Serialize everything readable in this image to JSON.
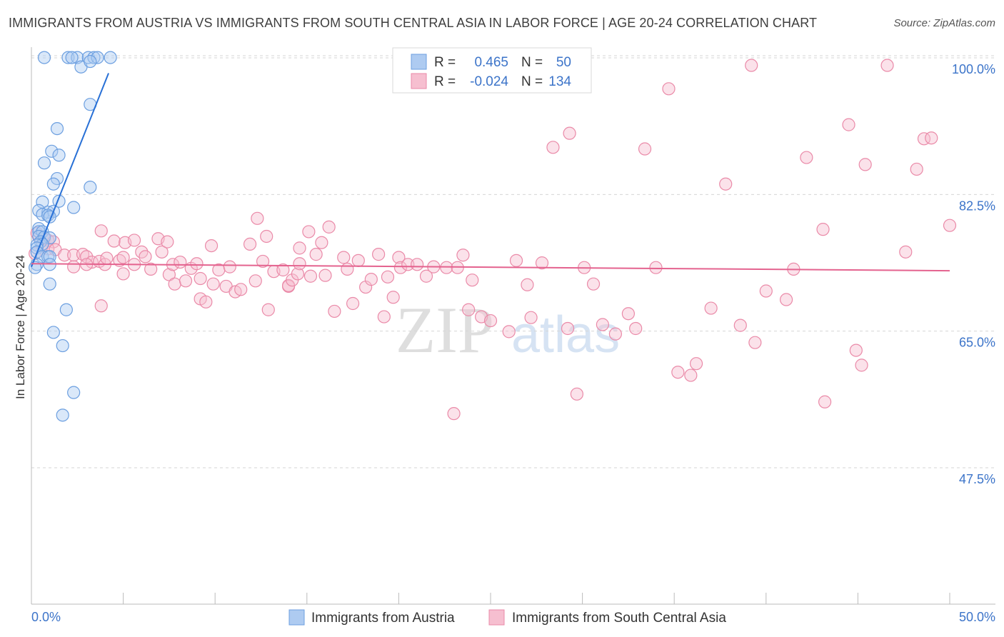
{
  "header": {
    "title": "IMMIGRANTS FROM AUSTRIA VS IMMIGRANTS FROM SOUTH CENTRAL ASIA IN LABOR FORCE | AGE 20-24 CORRELATION CHART",
    "source": "Source: ZipAtlas.com"
  },
  "watermark": {
    "part1": "ZIP",
    "part2": "atlas"
  },
  "stats_legend": {
    "rows": [
      {
        "r_label": "R =",
        "r_value": "0.465",
        "n_label": "N =",
        "n_value": "50"
      },
      {
        "r_label": "R =",
        "r_value": "-0.024",
        "n_label": "N =",
        "n_value": "134"
      }
    ]
  },
  "bottom_legend": {
    "items": [
      {
        "label": "Immigrants from Austria"
      },
      {
        "label": "Immigrants from South Central Asia"
      }
    ]
  },
  "colors": {
    "blue": "#6c9fe0",
    "blue_fill": "#aecbf1",
    "blue_line": "#2870d6",
    "pink": "#ea8aa8",
    "pink_fill": "#f6bfd0",
    "pink_line": "#e4638f",
    "value_text": "#3c74c9",
    "grid": "#d6d6d6"
  },
  "chart_data": {
    "type": "scatter",
    "title": "IMMIGRANTS FROM AUSTRIA VS IMMIGRANTS FROM SOUTH CENTRAL ASIA IN LABOR FORCE | AGE 20-24 CORRELATION CHART",
    "xlabel": "",
    "ylabel": "In Labor Force | Age 20-24",
    "xlim": [
      0,
      50
    ],
    "ylim": [
      30,
      101.5
    ],
    "x_tick_labels": [
      "0.0%",
      "50.0%"
    ],
    "y_ticks": [
      47.5,
      65.0,
      82.5,
      100.0
    ],
    "y_tick_labels": [
      "47.5%",
      "65.0%",
      "82.5%",
      "100.0%"
    ],
    "grid": true,
    "legend_position": "top-center",
    "series": [
      {
        "name": "Immigrants from Austria",
        "color": "blue",
        "r": 0.465,
        "n": 50,
        "trend": {
          "x": [
            0.0,
            4.2
          ],
          "y": [
            74.7,
            99.5
          ]
        },
        "points": [
          [
            0.7,
            101.5
          ],
          [
            2.0,
            101.5
          ],
          [
            2.5,
            101.5
          ],
          [
            3.1,
            101.5
          ],
          [
            3.4,
            101.5
          ],
          [
            4.3,
            101.5
          ],
          [
            2.2,
            101.5
          ],
          [
            3.6,
            101.5
          ],
          [
            2.7,
            100.3
          ],
          [
            3.2,
            101.0
          ],
          [
            3.2,
            95.5
          ],
          [
            1.4,
            92.4
          ],
          [
            1.1,
            89.5
          ],
          [
            1.5,
            89.0
          ],
          [
            0.7,
            88.0
          ],
          [
            1.4,
            86.0
          ],
          [
            1.2,
            85.3
          ],
          [
            3.2,
            84.9
          ],
          [
            1.5,
            83.1
          ],
          [
            0.6,
            83.0
          ],
          [
            2.3,
            82.3
          ],
          [
            0.4,
            81.9
          ],
          [
            0.9,
            81.7
          ],
          [
            1.2,
            81.8
          ],
          [
            0.6,
            81.4
          ],
          [
            0.9,
            81.3
          ],
          [
            1.0,
            81.1
          ],
          [
            0.4,
            79.6
          ],
          [
            0.4,
            79.2
          ],
          [
            0.6,
            79.2
          ],
          [
            0.4,
            78.6
          ],
          [
            0.7,
            78.5
          ],
          [
            1.0,
            78.4
          ],
          [
            0.5,
            77.9
          ],
          [
            0.6,
            77.6
          ],
          [
            0.3,
            77.5
          ],
          [
            0.3,
            77.1
          ],
          [
            0.3,
            76.6
          ],
          [
            0.6,
            76.0
          ],
          [
            0.9,
            76.0
          ],
          [
            1.0,
            76.0
          ],
          [
            0.3,
            75.0
          ],
          [
            1.0,
            75.0
          ],
          [
            0.2,
            74.6
          ],
          [
            1.0,
            72.5
          ],
          [
            1.9,
            69.2
          ],
          [
            1.2,
            66.3
          ],
          [
            1.7,
            64.6
          ],
          [
            2.3,
            58.6
          ],
          [
            1.7,
            55.7
          ]
        ]
      },
      {
        "name": "Immigrants from South Central Asia",
        "color": "pink",
        "r": -0.024,
        "n": 134,
        "trend": {
          "x": [
            0.0,
            50.0
          ],
          "y": [
            75.1,
            74.2
          ]
        },
        "points": [
          [
            0.3,
            79.0
          ],
          [
            0.4,
            78.5
          ],
          [
            0.7,
            78.3
          ],
          [
            0.9,
            78.1
          ],
          [
            1.2,
            77.9
          ],
          [
            0.6,
            77.4
          ],
          [
            0.9,
            77.0
          ],
          [
            1.3,
            76.9
          ],
          [
            0.2,
            76.4
          ],
          [
            1.8,
            76.2
          ],
          [
            2.3,
            76.2
          ],
          [
            2.8,
            76.3
          ],
          [
            3.0,
            76.0
          ],
          [
            3.3,
            75.3
          ],
          [
            2.3,
            74.7
          ],
          [
            3.0,
            75.0
          ],
          [
            3.8,
            69.7
          ],
          [
            3.7,
            75.4
          ],
          [
            3.8,
            79.3
          ],
          [
            4.0,
            75.0
          ],
          [
            4.1,
            75.8
          ],
          [
            4.5,
            78.0
          ],
          [
            4.8,
            75.5
          ],
          [
            5.0,
            75.9
          ],
          [
            5.0,
            73.8
          ],
          [
            5.1,
            77.8
          ],
          [
            5.6,
            75.0
          ],
          [
            5.6,
            78.1
          ],
          [
            6.0,
            76.6
          ],
          [
            6.2,
            76.0
          ],
          [
            6.5,
            74.4
          ],
          [
            6.9,
            78.3
          ],
          [
            7.1,
            76.6
          ],
          [
            7.4,
            77.9
          ],
          [
            7.5,
            73.7
          ],
          [
            7.7,
            75.0
          ],
          [
            7.8,
            72.5
          ],
          [
            8.1,
            75.3
          ],
          [
            8.4,
            72.9
          ],
          [
            8.7,
            74.5
          ],
          [
            9.0,
            75.1
          ],
          [
            9.2,
            73.2
          ],
          [
            9.2,
            70.6
          ],
          [
            9.5,
            70.2
          ],
          [
            9.8,
            77.4
          ],
          [
            9.9,
            72.5
          ],
          [
            10.2,
            74.3
          ],
          [
            10.6,
            72.2
          ],
          [
            10.8,
            74.7
          ],
          [
            11.1,
            71.5
          ],
          [
            11.4,
            71.8
          ],
          [
            11.9,
            77.6
          ],
          [
            12.2,
            72.9
          ],
          [
            12.3,
            80.9
          ],
          [
            12.6,
            75.4
          ],
          [
            12.8,
            78.6
          ],
          [
            12.9,
            69.2
          ],
          [
            13.2,
            74.1
          ],
          [
            13.7,
            74.3
          ],
          [
            14.0,
            72.2
          ],
          [
            14.0,
            72.3
          ],
          [
            14.2,
            73.0
          ],
          [
            14.5,
            73.8
          ],
          [
            14.6,
            75.1
          ],
          [
            14.6,
            77.1
          ],
          [
            15.1,
            79.2
          ],
          [
            15.2,
            73.5
          ],
          [
            15.5,
            76.3
          ],
          [
            15.8,
            77.8
          ],
          [
            16.0,
            73.6
          ],
          [
            16.2,
            79.8
          ],
          [
            16.5,
            69.0
          ],
          [
            17.0,
            75.9
          ],
          [
            17.2,
            74.4
          ],
          [
            17.5,
            70.0
          ],
          [
            17.8,
            75.5
          ],
          [
            18.2,
            72.1
          ],
          [
            18.5,
            73.1
          ],
          [
            18.9,
            76.3
          ],
          [
            19.2,
            68.3
          ],
          [
            19.4,
            73.4
          ],
          [
            19.7,
            70.8
          ],
          [
            20.0,
            75.9
          ],
          [
            20.1,
            74.6
          ],
          [
            20.5,
            75.0
          ],
          [
            21.0,
            75.0
          ],
          [
            21.5,
            73.5
          ],
          [
            21.9,
            74.7
          ],
          [
            22.6,
            74.6
          ],
          [
            23.2,
            74.6
          ],
          [
            23.5,
            76.2
          ],
          [
            23.0,
            55.9
          ],
          [
            23.8,
            69.2
          ],
          [
            24.0,
            73.0
          ],
          [
            24.5,
            68.3
          ],
          [
            25.0,
            67.8
          ],
          [
            26.0,
            66.4
          ],
          [
            26.4,
            75.5
          ],
          [
            27.0,
            72.4
          ],
          [
            27.2,
            68.2
          ],
          [
            27.8,
            75.2
          ],
          [
            28.4,
            90.0
          ],
          [
            29.2,
            66.8
          ],
          [
            29.3,
            91.8
          ],
          [
            29.7,
            58.4
          ],
          [
            30.1,
            74.6
          ],
          [
            30.6,
            72.5
          ],
          [
            31.1,
            67.3
          ],
          [
            31.8,
            66.1
          ],
          [
            32.5,
            68.7
          ],
          [
            32.9,
            66.8
          ],
          [
            33.4,
            89.8
          ],
          [
            34.0,
            74.6
          ],
          [
            34.7,
            97.5
          ],
          [
            35.2,
            61.2
          ],
          [
            35.9,
            60.8
          ],
          [
            36.2,
            62.3
          ],
          [
            37.0,
            69.4
          ],
          [
            37.8,
            85.3
          ],
          [
            38.6,
            67.2
          ],
          [
            39.2,
            100.5
          ],
          [
            39.4,
            65.0
          ],
          [
            40.0,
            71.6
          ],
          [
            41.1,
            70.5
          ],
          [
            41.5,
            74.4
          ],
          [
            42.2,
            88.7
          ],
          [
            43.1,
            79.5
          ],
          [
            43.2,
            57.4
          ],
          [
            44.5,
            92.9
          ],
          [
            44.9,
            64.0
          ],
          [
            45.2,
            62.1
          ],
          [
            45.4,
            87.8
          ],
          [
            46.6,
            100.5
          ],
          [
            47.6,
            76.6
          ],
          [
            48.2,
            87.2
          ],
          [
            48.6,
            91.1
          ],
          [
            49.0,
            91.2
          ],
          [
            50.0,
            80.0
          ]
        ]
      }
    ]
  }
}
